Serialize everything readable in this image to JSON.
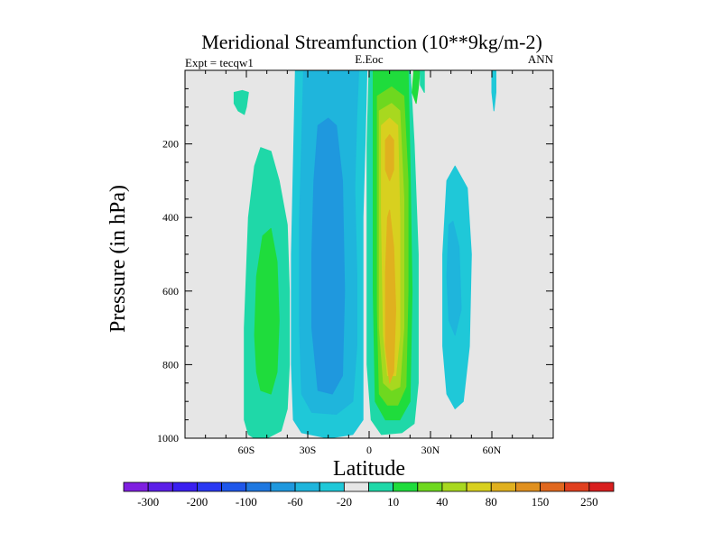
{
  "chart_data": {
    "type": "heatmap",
    "title": "Meridional Streamfunction (10**9kg/m-2)",
    "left_label": "Expt = tecqw1",
    "center_label": "E.Eoc",
    "right_label": "ANN",
    "xlabel": "Latitude",
    "ylabel": "Pressure (in hPa)",
    "xlim": [
      -90,
      90
    ],
    "ylim": [
      0,
      1000
    ],
    "y_inverted": true,
    "x_ticks": [
      {
        "value": -60,
        "label": "60S"
      },
      {
        "value": -30,
        "label": "30S"
      },
      {
        "value": 0,
        "label": "0"
      },
      {
        "value": 30,
        "label": "30N"
      },
      {
        "value": 60,
        "label": "60N"
      }
    ],
    "y_ticks": [
      {
        "value": 200,
        "label": "200"
      },
      {
        "value": 400,
        "label": "400"
      },
      {
        "value": 600,
        "label": "600"
      },
      {
        "value": 800,
        "label": "800"
      },
      {
        "value": 1000,
        "label": "1000"
      }
    ],
    "background_color": "#e6e6e6",
    "colorbar": {
      "colors": [
        "#7f1fe0",
        "#5b1fe8",
        "#3a1ff0",
        "#2a38f2",
        "#1f57ea",
        "#1f78e0",
        "#1f98de",
        "#1fb5dc",
        "#1fc8d8",
        "#e6e6e6",
        "#1fd8a8",
        "#1fdc3c",
        "#6ed81f",
        "#a8d81f",
        "#d8d01f",
        "#e0b01f",
        "#e0901f",
        "#e0681f",
        "#e0401f",
        "#d81f1f"
      ],
      "labels": [
        {
          "after_box": 1,
          "text": "-300"
        },
        {
          "after_box": 3,
          "text": "-200"
        },
        {
          "after_box": 5,
          "text": "-100"
        },
        {
          "after_box": 7,
          "text": "-60"
        },
        {
          "after_box": 9,
          "text": "-20"
        },
        {
          "after_box": 11,
          "text": "10"
        },
        {
          "after_box": 13,
          "text": "40"
        },
        {
          "after_box": 15,
          "text": "80"
        },
        {
          "after_box": 17,
          "text": "150"
        },
        {
          "after_box": 19,
          "text": "250"
        }
      ]
    },
    "regions": [
      {
        "name": "blob-sh-polar-top",
        "color": "#1fd8a8",
        "lat": [
          [
            -66,
            60
          ],
          [
            -62,
            55
          ],
          [
            -59,
            60
          ],
          [
            -60,
            100
          ],
          [
            -61,
            120
          ],
          [
            -64,
            110
          ],
          [
            -66,
            90
          ]
        ]
      },
      {
        "name": "blob-sh-green-outer",
        "color": "#1fd8a8",
        "lat": [
          [
            -56,
            1000
          ],
          [
            -59,
            990
          ],
          [
            -61,
            950
          ],
          [
            -61,
            700
          ],
          [
            -59,
            400
          ],
          [
            -56,
            260
          ],
          [
            -53,
            210
          ],
          [
            -48,
            220
          ],
          [
            -44,
            300
          ],
          [
            -40,
            420
          ],
          [
            -39,
            600
          ],
          [
            -39,
            800
          ],
          [
            -40,
            920
          ],
          [
            -43,
            980
          ],
          [
            -50,
            1000
          ]
        ]
      },
      {
        "name": "blob-sh-green-inner",
        "color": "#1fdc3c",
        "lat": [
          [
            -53,
            870
          ],
          [
            -55,
            820
          ],
          [
            -56,
            720
          ],
          [
            -55,
            560
          ],
          [
            -52,
            450
          ],
          [
            -48,
            430
          ],
          [
            -45,
            520
          ],
          [
            -44,
            680
          ],
          [
            -45,
            820
          ],
          [
            -48,
            880
          ]
        ]
      },
      {
        "name": "blob-sh-blue-outer",
        "color": "#1fc8d8",
        "lat": [
          [
            -36,
            -10
          ],
          [
            -37,
            250
          ],
          [
            -38,
            500
          ],
          [
            -38,
            800
          ],
          [
            -37,
            950
          ],
          [
            -33,
            985
          ],
          [
            -20,
            1000
          ],
          [
            -8,
            990
          ],
          [
            -3,
            950
          ],
          [
            -3,
            700
          ],
          [
            -3,
            400
          ],
          [
            -2,
            200
          ],
          [
            -1,
            -10
          ]
        ]
      },
      {
        "name": "blob-sh-blue-mid",
        "color": "#1fb5dc",
        "lat": [
          [
            -32,
            -10
          ],
          [
            -33,
            200
          ],
          [
            -34,
            400
          ],
          [
            -34,
            700
          ],
          [
            -33,
            880
          ],
          [
            -28,
            930
          ],
          [
            -16,
            935
          ],
          [
            -8,
            900
          ],
          [
            -6,
            750
          ],
          [
            -6,
            550
          ],
          [
            -7,
            320
          ],
          [
            -6,
            120
          ],
          [
            -5,
            -10
          ]
        ]
      },
      {
        "name": "blob-sh-blue-inner",
        "color": "#1f98de",
        "lat": [
          [
            -25,
            150
          ],
          [
            -27,
            300
          ],
          [
            -28,
            500
          ],
          [
            -28,
            700
          ],
          [
            -25,
            870
          ],
          [
            -18,
            880
          ],
          [
            -13,
            830
          ],
          [
            -12,
            600
          ],
          [
            -13,
            300
          ],
          [
            -16,
            150
          ],
          [
            -20,
            130
          ]
        ]
      },
      {
        "name": "blob-nh-green-outer",
        "color": "#1fd8a8",
        "lat": [
          [
            0,
            -10
          ],
          [
            -1,
            200
          ],
          [
            -1,
            500
          ],
          [
            -1,
            800
          ],
          [
            1,
            950
          ],
          [
            6,
            990
          ],
          [
            16,
            985
          ],
          [
            22,
            960
          ],
          [
            24,
            850
          ],
          [
            24,
            500
          ],
          [
            22,
            200
          ],
          [
            20,
            -10
          ]
        ]
      },
      {
        "name": "blob-nh-green-inner",
        "color": "#1fdc3c",
        "lat": [
          [
            2,
            -10
          ],
          [
            2,
            250
          ],
          [
            2,
            600
          ],
          [
            3,
            900
          ],
          [
            8,
            950
          ],
          [
            15,
            950
          ],
          [
            20,
            900
          ],
          [
            21,
            600
          ],
          [
            20,
            250
          ],
          [
            19,
            -10
          ]
        ]
      },
      {
        "name": "blob-nh-yellowgreen",
        "color": "#6ed81f",
        "lat": [
          [
            4,
            70
          ],
          [
            4,
            300
          ],
          [
            4,
            650
          ],
          [
            5,
            880
          ],
          [
            9,
            910
          ],
          [
            14,
            910
          ],
          [
            18,
            860
          ],
          [
            19,
            600
          ],
          [
            19,
            300
          ],
          [
            17,
            70
          ],
          [
            11,
            45
          ]
        ]
      },
      {
        "name": "blob-nh-lightyellow",
        "color": "#a8d81f",
        "lat": [
          [
            5,
            110
          ],
          [
            5,
            350
          ],
          [
            5,
            700
          ],
          [
            7,
            850
          ],
          [
            11,
            870
          ],
          [
            15,
            860
          ],
          [
            17,
            700
          ],
          [
            17,
            350
          ],
          [
            15,
            110
          ],
          [
            11,
            90
          ]
        ]
      },
      {
        "name": "blob-nh-yellow",
        "color": "#d8d01f",
        "lat": [
          [
            6,
            150
          ],
          [
            6,
            400
          ],
          [
            7,
            720
          ],
          [
            9,
            830
          ],
          [
            13,
            830
          ],
          [
            15,
            720
          ],
          [
            15,
            400
          ],
          [
            14,
            150
          ],
          [
            10,
            130
          ]
        ]
      },
      {
        "name": "blob-nh-orange-top",
        "color": "#e0b01f",
        "lat": [
          [
            8,
            190
          ],
          [
            8,
            270
          ],
          [
            10,
            300
          ],
          [
            12,
            270
          ],
          [
            12,
            190
          ],
          [
            10,
            175
          ]
        ]
      },
      {
        "name": "blob-nh-orange-low",
        "color": "#e0b01f",
        "lat": [
          [
            9,
            400
          ],
          [
            8,
            550
          ],
          [
            8,
            750
          ],
          [
            10,
            850
          ],
          [
            12,
            820
          ],
          [
            13,
            650
          ],
          [
            12,
            480
          ],
          [
            10,
            380
          ]
        ]
      },
      {
        "name": "blob-nh-blue-mid",
        "color": "#1fc8d8",
        "lat": [
          [
            38,
            300
          ],
          [
            36,
            500
          ],
          [
            36,
            750
          ],
          [
            38,
            880
          ],
          [
            42,
            920
          ],
          [
            46,
            900
          ],
          [
            49,
            750
          ],
          [
            50,
            500
          ],
          [
            48,
            320
          ],
          [
            42,
            260
          ]
        ]
      },
      {
        "name": "blob-nh-blue-inner",
        "color": "#1fb5dc",
        "lat": [
          [
            39,
            420
          ],
          [
            38,
            560
          ],
          [
            39,
            680
          ],
          [
            42,
            720
          ],
          [
            45,
            650
          ],
          [
            44,
            480
          ],
          [
            41,
            410
          ]
        ]
      },
      {
        "name": "blob-nh-green-spike-a",
        "color": "#1fdc3c",
        "lat": [
          [
            22,
            -10
          ],
          [
            21,
            60
          ],
          [
            23,
            90
          ],
          [
            24,
            50
          ],
          [
            25,
            -10
          ]
        ]
      },
      {
        "name": "blob-nh-green-spike-b",
        "color": "#1fd8a8",
        "lat": [
          [
            25,
            -10
          ],
          [
            25,
            40
          ],
          [
            27,
            60
          ],
          [
            27,
            -10
          ]
        ]
      },
      {
        "name": "blob-nh-polar-spike",
        "color": "#1fc8d8",
        "lat": [
          [
            60,
            -10
          ],
          [
            60,
            60
          ],
          [
            61,
            110
          ],
          [
            62,
            60
          ],
          [
            62,
            -10
          ]
        ]
      }
    ]
  }
}
